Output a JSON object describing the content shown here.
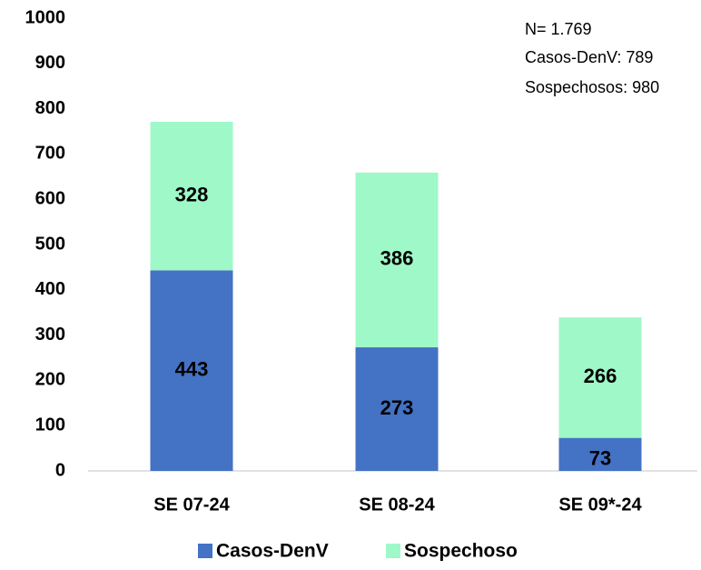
{
  "chart_data": {
    "type": "stacked_bar",
    "categories": [
      "SE 07-24",
      "SE 08-24",
      "SE 09*-24"
    ],
    "series": [
      {
        "name": "Casos-DenV",
        "color": "#4472c4",
        "values": [
          443,
          273,
          73
        ]
      },
      {
        "name": "Sospechoso",
        "color": "#9ff8c8",
        "values": [
          328,
          386,
          266
        ]
      }
    ],
    "ylim": [
      0,
      1000
    ],
    "yticks": [
      0,
      100,
      200,
      300,
      400,
      500,
      600,
      700,
      800,
      900,
      1000
    ],
    "annotations": [
      "N= 1.769",
      "Casos-DenV: 789",
      "Sospechosos: 980"
    ],
    "legend": "bottom",
    "grid": false
  }
}
